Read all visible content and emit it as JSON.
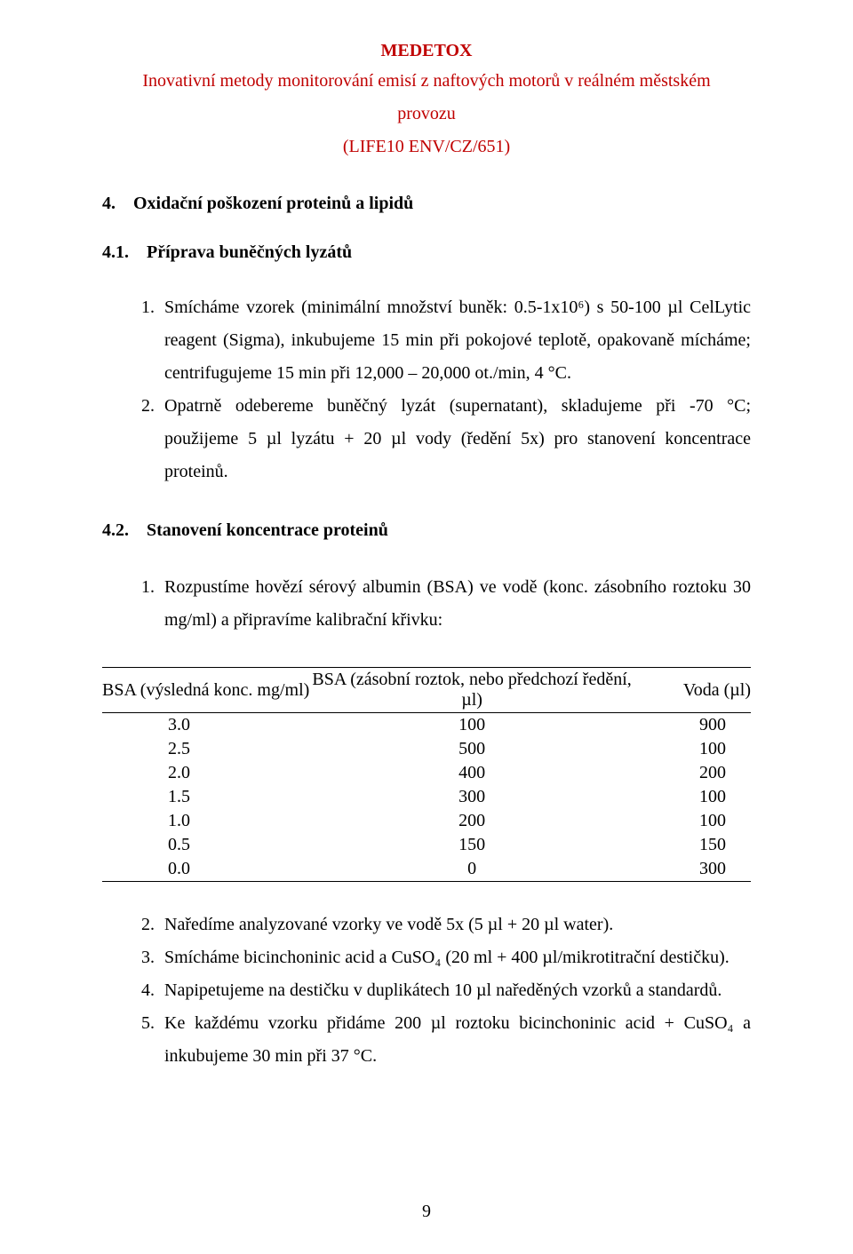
{
  "header": {
    "title": "MEDETOX",
    "subtitle_line1": "Inovativní metody monitorování emisí z naftových motorů v reálném městském",
    "subtitle_line2": "provozu",
    "code": "(LIFE10 ENV/CZ/651)"
  },
  "s4": {
    "heading": "4. Oxidační poškození proteinů a lipidů"
  },
  "s41": {
    "heading": "4.1. Příprava buněčných lyzátů",
    "items": [
      "Smícháme vzorek (minimální množství buněk: 0.5-1x10⁶) s 50-100 µl CelLytic reagent (Sigma), inkubujeme 15 min při pokojové teplotě, opakovaně mícháme; centrifugujeme 15 min při 12,000 – 20,000 ot./min, 4 °C.",
      "Opatrně odebereme buněčný lyzát (supernatant), skladujeme při -70 °C; použijeme 5 µl lyzátu + 20 µl vody (ředění 5x) pro stanovení koncentrace proteinů."
    ]
  },
  "s42": {
    "heading": "4.2. Stanovení koncentrace proteinů",
    "intro": "Rozpustíme hovězí sérový albumin (BSA) ve vodě (konc. zásobního roztoku 30 mg/ml) a připravíme kalibrační křivku:"
  },
  "table": {
    "col1": "BSA (výsledná konc. mg/ml)",
    "col2": "BSA (zásobní roztok, nebo předchozí ředění, µl)",
    "col3": "Voda (µl)",
    "rows": [
      {
        "a": "3.0",
        "b": "100",
        "c": "900"
      },
      {
        "a": "2.5",
        "b": "500",
        "c": "100"
      },
      {
        "a": "2.0",
        "b": "400",
        "c": "200"
      },
      {
        "a": "1.5",
        "b": "300",
        "c": "100"
      },
      {
        "a": "1.0",
        "b": "200",
        "c": "100"
      },
      {
        "a": "0.5",
        "b": "150",
        "c": "150"
      },
      {
        "a": "0.0",
        "b": "0",
        "c": "300"
      }
    ]
  },
  "steps2": {
    "items": [
      "Naředíme analyzované vzorky ve vodě 5x (5 µl + 20 µl water).",
      "Smícháme bicinchoninic acid a CuSO₄ (20 ml + 400 µl/mikrotitrační destičku).",
      "Napipetujeme na destičku v duplikátech 10 µl naředěných vzorků a standardů.",
      "Ke každému vzorku přidáme 200 µl roztoku bicinchoninic acid + CuSO₄ a inkubujeme 30 min při 37 °C."
    ]
  },
  "pagenum": "9"
}
